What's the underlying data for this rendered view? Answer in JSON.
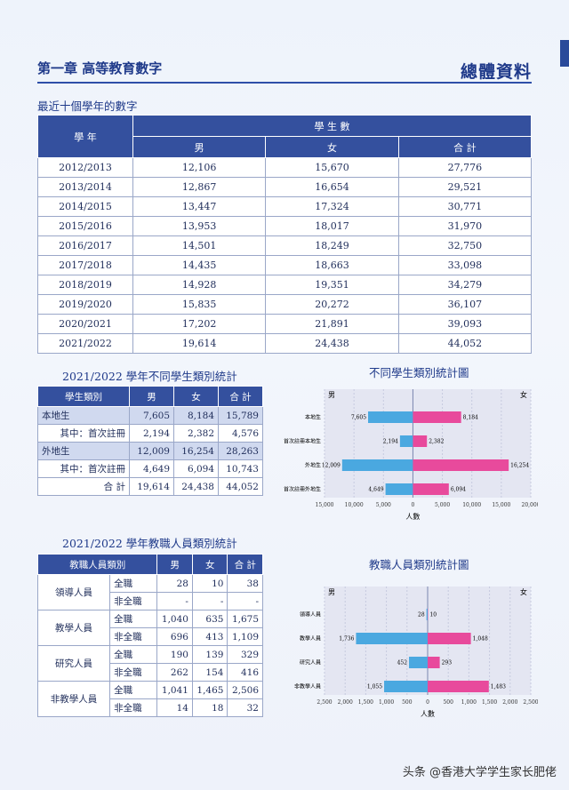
{
  "header": {
    "chapter": "第一章 高等教育數字",
    "section": "總體資料"
  },
  "ten_year": {
    "subtitle": "最近十個學年的數字",
    "h_year": "學 年",
    "h_students": "學 生 數",
    "h_male": "男",
    "h_female": "女",
    "h_total": "合 計",
    "rows": [
      [
        "2012/2013",
        "12,106",
        "15,670",
        "27,776"
      ],
      [
        "2013/2014",
        "12,867",
        "16,654",
        "29,521"
      ],
      [
        "2014/2015",
        "13,447",
        "17,324",
        "30,771"
      ],
      [
        "2015/2016",
        "13,953",
        "18,017",
        "31,970"
      ],
      [
        "2016/2017",
        "14,501",
        "18,249",
        "32,750"
      ],
      [
        "2017/2018",
        "14,435",
        "18,663",
        "33,098"
      ],
      [
        "2018/2019",
        "14,928",
        "19,351",
        "34,279"
      ],
      [
        "2019/2020",
        "15,835",
        "20,272",
        "36,107"
      ],
      [
        "2020/2021",
        "17,202",
        "21,891",
        "39,093"
      ],
      [
        "2021/2022",
        "19,614",
        "24,438",
        "44,052"
      ]
    ]
  },
  "student_types": {
    "title": "2021/2022 學年不同學生類別統計",
    "h_cat": "學生類別",
    "h_male": "男",
    "h_female": "女",
    "h_total": "合 計",
    "rows": [
      {
        "label": "本地生",
        "male": "7,605",
        "female": "8,184",
        "total": "15,789",
        "hl": true
      },
      {
        "label": "其中：首次註冊",
        "male": "2,194",
        "female": "2,382",
        "total": "4,576",
        "hl": false
      },
      {
        "label": "外地生",
        "male": "12,009",
        "female": "16,254",
        "total": "28,263",
        "hl": true
      },
      {
        "label": "其中：首次註冊",
        "male": "4,649",
        "female": "6,094",
        "total": "10,743",
        "hl": false
      },
      {
        "label": "合 計",
        "male": "19,614",
        "female": "24,438",
        "total": "44,052",
        "hl": false
      }
    ]
  },
  "staff": {
    "title": "2021/2022 學年教職人員類別統計",
    "h_cat": "教職人員類別",
    "h_male": "男",
    "h_female": "女",
    "h_total": "合 計",
    "groups": [
      {
        "label": "領導人員",
        "rows": [
          [
            "全職",
            "28",
            "10",
            "38"
          ],
          [
            "非全職",
            "-",
            "-",
            "-"
          ]
        ]
      },
      {
        "label": "教學人員",
        "rows": [
          [
            "全職",
            "1,040",
            "635",
            "1,675"
          ],
          [
            "非全職",
            "696",
            "413",
            "1,109"
          ]
        ]
      },
      {
        "label": "研究人員",
        "rows": [
          [
            "全職",
            "190",
            "139",
            "329"
          ],
          [
            "非全職",
            "262",
            "154",
            "416"
          ]
        ]
      },
      {
        "label": "非教學人員",
        "rows": [
          [
            "全職",
            "1,041",
            "1,465",
            "2,506"
          ],
          [
            "非全職",
            "14",
            "18",
            "32"
          ]
        ]
      }
    ]
  },
  "chart_data": [
    {
      "type": "bar",
      "title": "不同學生類別統計圖",
      "categories": [
        "本地生",
        "首次註冊本地生",
        "外地生",
        "首次註冊外地生"
      ],
      "series": [
        {
          "name": "男",
          "values": [
            7605,
            2194,
            12009,
            4649
          ],
          "color": "#4aa8e0"
        },
        {
          "name": "女",
          "values": [
            8184,
            2382,
            16254,
            6094
          ],
          "color": "#e84a9c"
        }
      ],
      "xlabel": "人數",
      "xlim": [
        -15000,
        20000
      ],
      "ticks": [
        "15,000",
        "10,000",
        "5,000",
        "0",
        "5,000",
        "10,000",
        "15,000",
        "20,000"
      ],
      "tick_values": [
        -15000,
        -10000,
        -5000,
        0,
        5000,
        10000,
        15000,
        20000
      ],
      "value_labels": {
        "male": [
          "7,605",
          "2,194",
          "12,009",
          "4,649"
        ],
        "female": [
          "8,184",
          "2,382",
          "16,254",
          "6,094"
        ]
      }
    },
    {
      "type": "bar",
      "title": "教職人員類別統計圖",
      "categories": [
        "領導人員",
        "教學人員",
        "研究人員",
        "非教學人員"
      ],
      "series": [
        {
          "name": "男",
          "values": [
            28,
            1736,
            452,
            1055
          ],
          "color": "#4aa8e0"
        },
        {
          "name": "女",
          "values": [
            10,
            1048,
            293,
            1483
          ],
          "color": "#e84a9c"
        }
      ],
      "xlabel": "人數",
      "xlim": [
        -2500,
        2500
      ],
      "ticks": [
        "2,500",
        "2,000",
        "1,500",
        "1,000",
        "500",
        "0",
        "500",
        "1,000",
        "1,500",
        "2,000",
        "2,500"
      ],
      "tick_values": [
        -2500,
        -2000,
        -1500,
        -1000,
        -500,
        0,
        500,
        1000,
        1500,
        2000,
        2500
      ],
      "value_labels": {
        "male": [
          "28",
          "1,736",
          "452",
          "1,055"
        ],
        "female": [
          "10",
          "1,048",
          "293",
          "1,483"
        ]
      }
    }
  ],
  "watermark": "头条 @香港大学学生家长肥佬"
}
